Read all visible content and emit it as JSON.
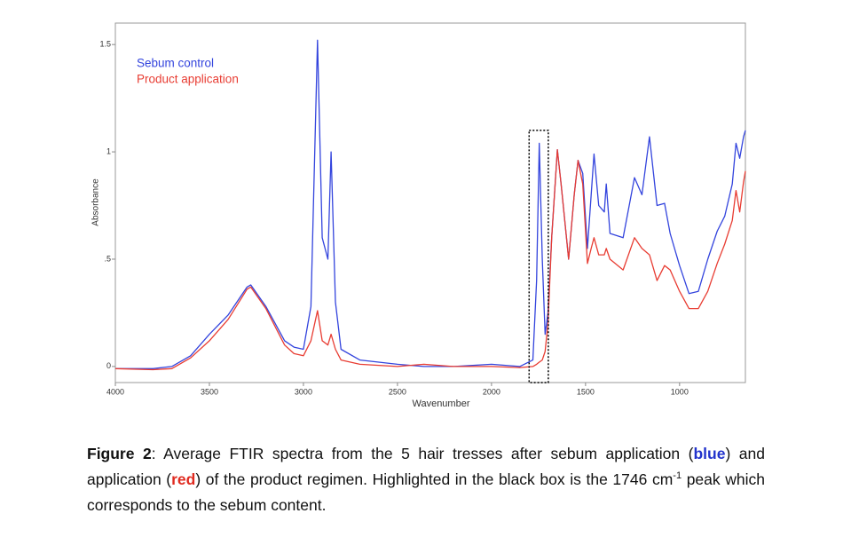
{
  "chart_data": {
    "type": "line",
    "x_label": "Wavenumber",
    "y_label": "Absorbance",
    "x": [
      4000,
      3800,
      3700,
      3600,
      3500,
      3400,
      3300,
      3280,
      3200,
      3100,
      3050,
      3000,
      2960,
      2925,
      2900,
      2870,
      2853,
      2830,
      2800,
      2700,
      2500,
      2360,
      2200,
      2000,
      1850,
      1780,
      1760,
      1746,
      1730,
      1715,
      1700,
      1680,
      1650,
      1630,
      1590,
      1560,
      1540,
      1515,
      1490,
      1470,
      1455,
      1430,
      1400,
      1390,
      1370,
      1300,
      1240,
      1200,
      1160,
      1120,
      1080,
      1050,
      1000,
      950,
      900,
      850,
      800,
      760,
      720,
      700,
      680,
      660,
      650
    ],
    "series": [
      {
        "name": "Sebum control",
        "color": "#3344dd",
        "values": [
          -0.01,
          -0.01,
          0.0,
          0.05,
          0.15,
          0.24,
          0.37,
          0.38,
          0.28,
          0.12,
          0.09,
          0.08,
          0.28,
          1.52,
          0.6,
          0.5,
          1.0,
          0.3,
          0.08,
          0.03,
          0.01,
          0.0,
          0.0,
          0.01,
          0.0,
          0.03,
          0.4,
          1.04,
          0.5,
          0.15,
          0.25,
          0.6,
          1.01,
          0.85,
          0.5,
          0.8,
          0.96,
          0.9,
          0.55,
          0.8,
          0.99,
          0.75,
          0.72,
          0.85,
          0.62,
          0.6,
          0.88,
          0.8,
          1.07,
          0.75,
          0.76,
          0.62,
          0.47,
          0.34,
          0.35,
          0.5,
          0.63,
          0.7,
          0.85,
          1.04,
          0.97,
          1.07,
          1.1
        ]
      },
      {
        "name": "Product application",
        "color": "#e83c32",
        "values": [
          -0.01,
          -0.015,
          -0.01,
          0.04,
          0.12,
          0.22,
          0.36,
          0.37,
          0.27,
          0.1,
          0.06,
          0.05,
          0.12,
          0.26,
          0.12,
          0.1,
          0.15,
          0.08,
          0.03,
          0.01,
          0.0,
          0.01,
          0.0,
          0.0,
          -0.005,
          0.0,
          0.01,
          0.02,
          0.03,
          0.07,
          0.2,
          0.6,
          1.01,
          0.85,
          0.5,
          0.8,
          0.96,
          0.85,
          0.48,
          0.55,
          0.6,
          0.52,
          0.52,
          0.55,
          0.5,
          0.45,
          0.6,
          0.55,
          0.52,
          0.4,
          0.47,
          0.45,
          0.35,
          0.27,
          0.27,
          0.35,
          0.48,
          0.57,
          0.68,
          0.82,
          0.72,
          0.86,
          0.91
        ]
      }
    ],
    "xlim": [
      4000,
      650
    ],
    "xticks": [
      4000,
      3500,
      3000,
      2500,
      2000,
      1500,
      1000
    ],
    "ylim": [
      -0.075,
      1.6
    ],
    "yticks": [
      0,
      {
        "value": 0.5,
        "label": ".5"
      },
      1,
      1.5
    ],
    "legend": "upper left",
    "highlight_x": [
      1800,
      1698
    ],
    "highlight_top": 1.1
  },
  "caption": {
    "parts": [
      "Figure 2",
      ": Average FTIR spectra from the 5 hair tresses after sebum application (",
      "blue",
      ") and application (",
      "red",
      ") of the product regimen. Highlighted in the black box is the 1746 cm",
      "-1",
      " peak which corresponds to the sebum content."
    ]
  }
}
